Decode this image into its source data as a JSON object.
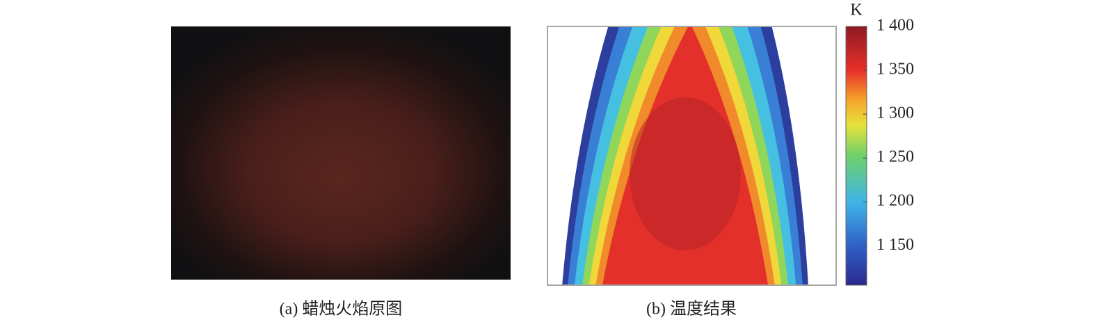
{
  "panels": [
    {
      "caption": "(a) 蜡烛火焰原图"
    },
    {
      "caption": "(b) 温度结果",
      "colorbar": {
        "unit": "K",
        "lim": [
          1105,
          1400
        ],
        "ticks": [
          {
            "value": 1400,
            "label": "1 400"
          },
          {
            "value": 1350,
            "label": "1 350"
          },
          {
            "value": 1300,
            "label": "1 300"
          },
          {
            "value": 1250,
            "label": "1 250"
          },
          {
            "value": 1200,
            "label": "1 200"
          },
          {
            "value": 1150,
            "label": "1 150"
          }
        ]
      }
    }
  ]
}
